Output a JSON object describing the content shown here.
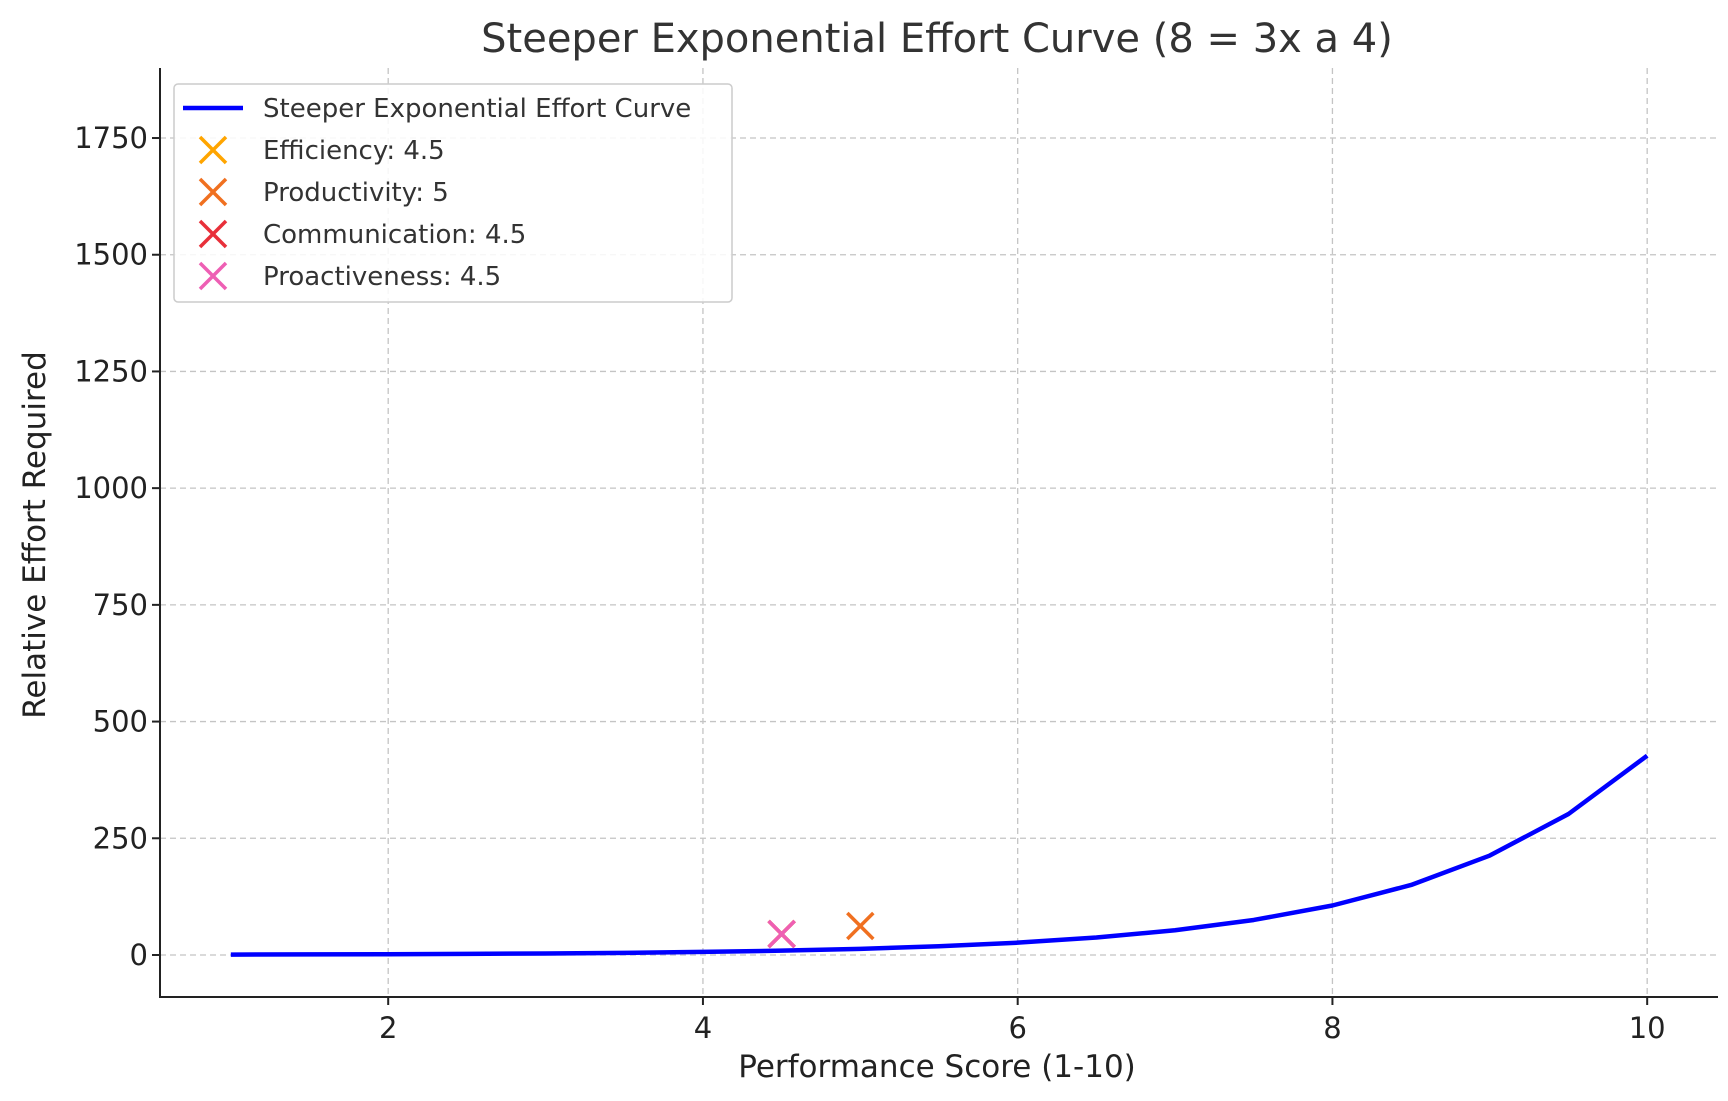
{
  "chart_data": {
    "type": "line",
    "title": "Steeper Exponential Effort Curve (8 = 3x a 4)",
    "xlabel": "Performance Score (1-10)",
    "ylabel": "Relative Effort Required",
    "xlim": [
      0.55,
      10.45
    ],
    "ylim": [
      -90,
      1900
    ],
    "xticks": [
      2,
      4,
      6,
      8,
      10
    ],
    "yticks": [
      0,
      250,
      500,
      750,
      1000,
      1250,
      1500,
      1750
    ],
    "grid": true,
    "legend_position": "top-left",
    "curve": {
      "name": "Steeper Exponential Effort Curve",
      "color": "#0000ff",
      "x_range": [
        1,
        10
      ],
      "x": [
        1,
        1.5,
        2,
        2.5,
        3,
        3.5,
        4,
        4.5,
        5,
        5.5,
        6,
        6.5,
        7,
        7.5,
        8,
        8.5,
        9,
        9.5,
        10
      ],
      "y": [
        0.8,
        1.2,
        1.6,
        2.3,
        3.3,
        4.6,
        6.6,
        9.3,
        13.2,
        18.6,
        26.4,
        37.4,
        53,
        75,
        106,
        150,
        213,
        302,
        427
      ]
    },
    "markers": [
      {
        "name": "Efficiency: 4.5",
        "x": 4.5,
        "y": 45,
        "color": "#ffa500",
        "marker": "x"
      },
      {
        "name": "Productivity: 5",
        "x": 5,
        "y": 62,
        "color": "#f07020",
        "marker": "x"
      },
      {
        "name": "Communication: 4.5",
        "x": 4.5,
        "y": 45,
        "color": "#e8303a",
        "marker": "x"
      },
      {
        "name": "Proactiveness: 4.5",
        "x": 4.5,
        "y": 45,
        "color": "#ee5fb4",
        "marker": "x"
      }
    ]
  }
}
